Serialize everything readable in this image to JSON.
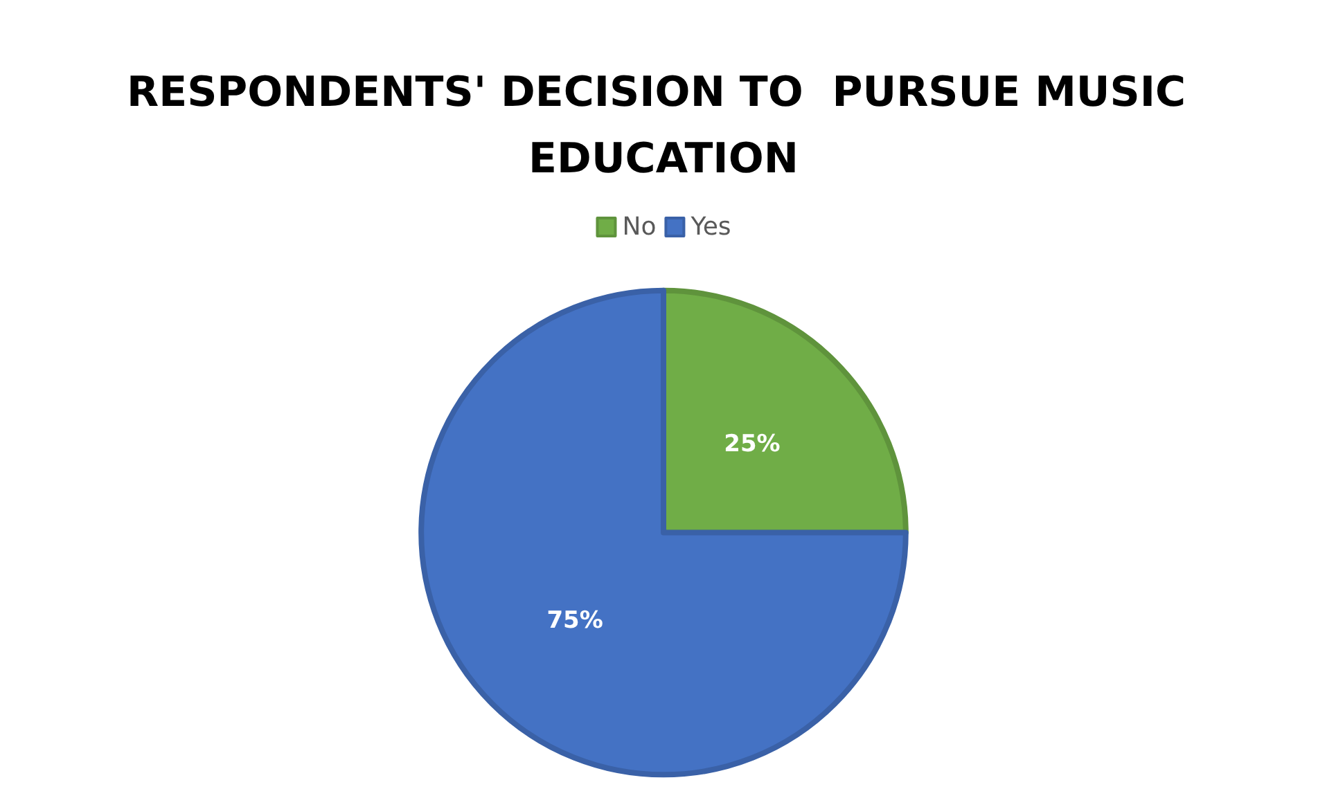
{
  "chart_data": {
    "type": "pie",
    "title": "RESPONDENTS' DECISION TO  PURSUE MUSIC EDUCATION",
    "categories": [
      "No",
      "Yes"
    ],
    "values": [
      25,
      75
    ],
    "colors": [
      "#70ad47",
      "#4472c4"
    ],
    "value_labels": [
      "25%",
      "75%"
    ],
    "legend": "top"
  }
}
